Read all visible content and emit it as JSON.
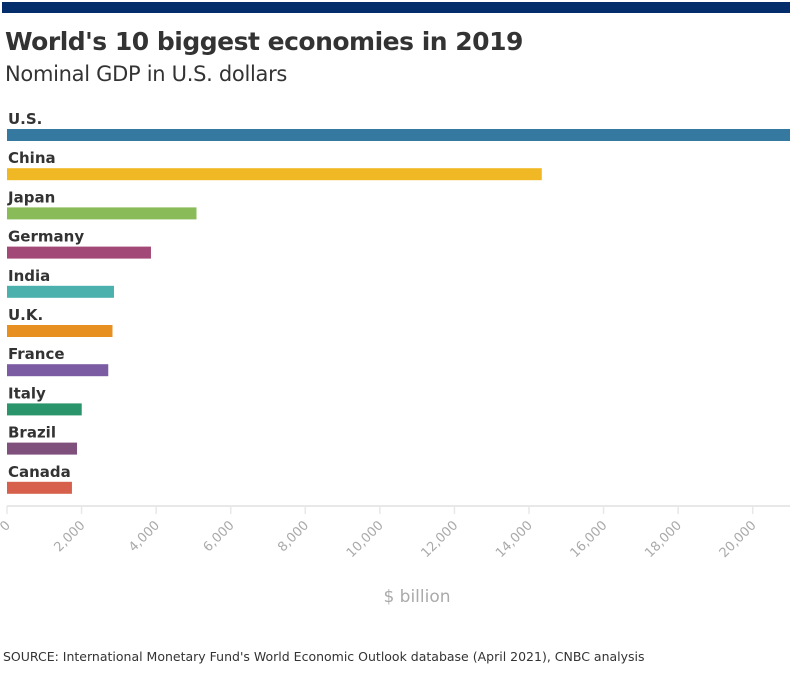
{
  "header": {
    "title": "World's 10 biggest economies in 2019",
    "subtitle": "Nominal GDP in U.S. dollars",
    "bar_color": "#042d6b"
  },
  "chart_data": {
    "type": "bar",
    "orientation": "horizontal",
    "categories": [
      "U.S.",
      "China",
      "Japan",
      "Germany",
      "India",
      "U.K.",
      "France",
      "Italy",
      "Brazil",
      "Canada"
    ],
    "values": [
      21433,
      14343,
      5082,
      3861,
      2869,
      2829,
      2716,
      2004,
      1878,
      1742
    ],
    "colors": [
      "#3579a1",
      "#f1b825",
      "#89bb58",
      "#a24977",
      "#4cb0ad",
      "#e88f22",
      "#7b5ca3",
      "#2a946b",
      "#80507d",
      "#d6604b"
    ],
    "xlabel": "$ billion",
    "ylabel": "",
    "xlim": [
      0,
      21000
    ],
    "xticks": [
      0,
      2000,
      4000,
      6000,
      8000,
      10000,
      12000,
      14000,
      16000,
      18000,
      20000
    ],
    "xtick_labels": [
      "0",
      "2,000",
      "4,000",
      "6,000",
      "8,000",
      "10,000",
      "12,000",
      "14,000",
      "16,000",
      "18,000",
      "20,000"
    ],
    "grid": false,
    "legend": "none"
  },
  "footer": {
    "source": "SOURCE: International Monetary Fund's World Economic Outlook database (April 2021), CNBC analysis"
  }
}
